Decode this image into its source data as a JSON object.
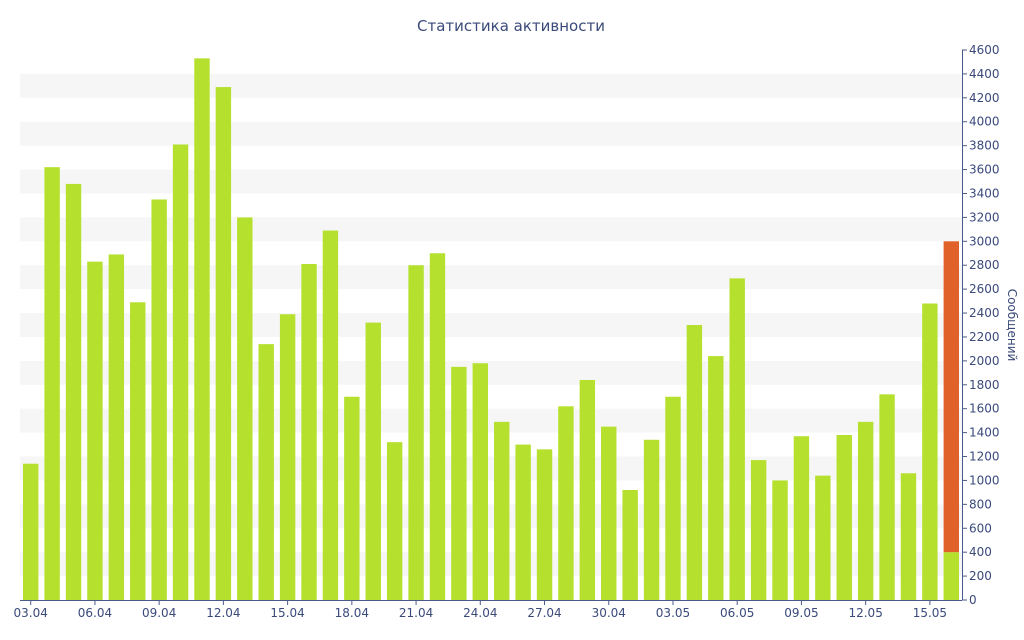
{
  "chart_data": {
    "type": "bar",
    "title": "Статистика активности",
    "ylabel": "Сообщений",
    "xlabel": "",
    "ylim": [
      0,
      4600
    ],
    "yticks": [
      0,
      200,
      400,
      600,
      800,
      1000,
      1200,
      1400,
      1600,
      1800,
      2000,
      2200,
      2400,
      2600,
      2800,
      3000,
      3200,
      3400,
      3600,
      3800,
      4000,
      4200,
      4400,
      4600
    ],
    "y_axis_side": "right",
    "grid": "alternating horizontal bands",
    "xtick_labels": [
      "03.04",
      "06.04",
      "09.04",
      "12.04",
      "15.04",
      "18.04",
      "21.04",
      "24.04",
      "27.04",
      "30.04",
      "03.05",
      "06.05",
      "09.05",
      "12.05",
      "15.05"
    ],
    "categories": [
      "03.04",
      "04.04",
      "05.04",
      "06.04",
      "07.04",
      "08.04",
      "09.04",
      "10.04",
      "11.04",
      "12.04",
      "13.04",
      "14.04",
      "15.04",
      "16.04",
      "17.04",
      "18.04",
      "19.04",
      "20.04",
      "21.04",
      "22.04",
      "23.04",
      "24.04",
      "25.04",
      "26.04",
      "27.04",
      "28.04",
      "29.04",
      "30.04",
      "01.05",
      "02.05",
      "03.05",
      "04.05",
      "05.05",
      "06.05",
      "07.05",
      "08.05",
      "09.05",
      "10.05",
      "11.05",
      "12.05",
      "13.05",
      "14.05",
      "15.05",
      "16.05"
    ],
    "series": [
      {
        "color": "#b5e02e",
        "values": [
          1140,
          3620,
          3480,
          2830,
          2890,
          2490,
          3350,
          3810,
          4530,
          4290,
          3200,
          2140,
          2390,
          2810,
          3090,
          1700,
          2320,
          1320,
          2800,
          2900,
          1950,
          1980,
          1490,
          1300,
          1260,
          1620,
          1840,
          1450,
          920,
          1340,
          1700,
          2300,
          2040,
          2690,
          1170,
          1000,
          1370,
          1040,
          1380,
          1490,
          1720,
          1060,
          2480,
          400
        ]
      },
      {
        "color": "#e0622a",
        "values": [
          0,
          0,
          0,
          0,
          0,
          0,
          0,
          0,
          0,
          0,
          0,
          0,
          0,
          0,
          0,
          0,
          0,
          0,
          0,
          0,
          0,
          0,
          0,
          0,
          0,
          0,
          0,
          0,
          0,
          0,
          0,
          0,
          0,
          0,
          0,
          0,
          0,
          0,
          0,
          0,
          0,
          0,
          0,
          2600
        ]
      }
    ]
  }
}
